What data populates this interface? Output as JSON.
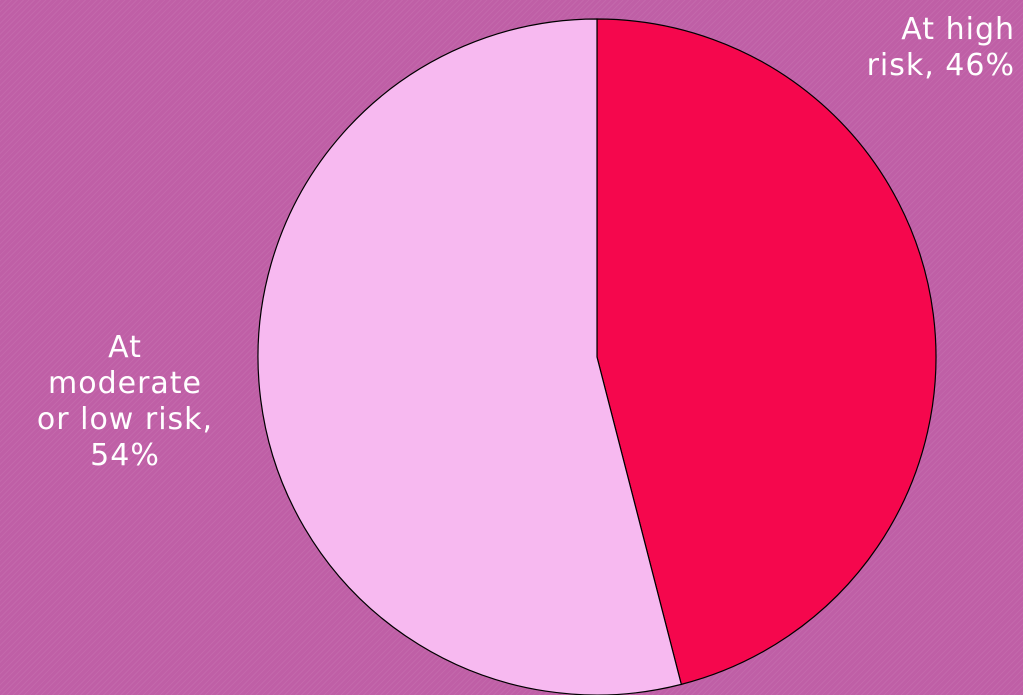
{
  "chart_data": {
    "type": "pie",
    "slices": [
      {
        "label": "At high risk",
        "value": 46,
        "color": "#f5074d"
      },
      {
        "label": "At moderate or low risk",
        "value": 54,
        "color": "#f7b9f0"
      }
    ],
    "data_labels": [
      "At high\nrisk, 46%",
      "At\nmoderate\nor low risk,\n54%"
    ],
    "start": "12 o'clock",
    "direction": "clockwise",
    "legend": "none"
  },
  "colors": {
    "background": "#bf5fa6",
    "slice_outline": "#000000",
    "label_text": "#ffffff"
  }
}
